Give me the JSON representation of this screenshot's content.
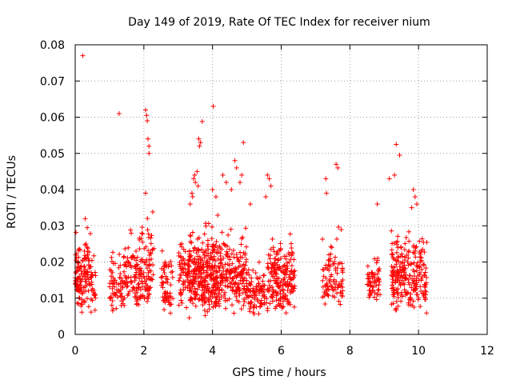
{
  "chart_data": {
    "type": "scatter",
    "title": "Day 149 of 2019, Rate Of TEC Index for receiver nium",
    "xlabel": "GPS time / hours",
    "ylabel": "ROTI / TECUs",
    "xlim": [
      0,
      12
    ],
    "ylim": [
      0,
      0.08
    ],
    "x_ticks": [
      0,
      2,
      4,
      6,
      8,
      10,
      12
    ],
    "y_ticks": [
      0,
      0.01,
      0.02,
      0.03,
      0.04,
      0.05,
      0.06,
      0.07,
      0.08
    ],
    "x_tick_labels": [
      "0",
      "2",
      "4",
      "6",
      "8",
      "10",
      "12"
    ],
    "y_tick_labels": [
      "0",
      "0.01",
      "0.02",
      "0.03",
      "0.04",
      "0.05",
      "0.06",
      "0.07",
      "0.08"
    ],
    "grid": true,
    "marker": "+",
    "color": "#ff0000",
    "clusters": [
      {
        "x_range": [
          0.0,
          0.2
        ],
        "y_range": [
          0.005,
          0.03
        ],
        "count": 70
      },
      {
        "x_range": [
          0.2,
          0.45
        ],
        "y_range": [
          0.006,
          0.034
        ],
        "count": 60
      },
      {
        "x_range": [
          0.45,
          0.6
        ],
        "y_range": [
          0.005,
          0.026
        ],
        "count": 25
      },
      {
        "x_range": [
          1.0,
          1.4
        ],
        "y_range": [
          0.005,
          0.026
        ],
        "count": 60
      },
      {
        "x_range": [
          1.4,
          1.75
        ],
        "y_range": [
          0.004,
          0.034
        ],
        "count": 60
      },
      {
        "x_range": [
          1.75,
          2.3
        ],
        "y_range": [
          0.005,
          0.037
        ],
        "count": 120
      },
      {
        "x_range": [
          2.5,
          2.85
        ],
        "y_range": [
          0.004,
          0.027
        ],
        "count": 60
      },
      {
        "x_range": [
          3.0,
          3.35
        ],
        "y_range": [
          0.007,
          0.031
        ],
        "count": 70
      },
      {
        "x_range": [
          3.3,
          4.3
        ],
        "y_range": [
          0.004,
          0.034
        ],
        "count": 350
      },
      {
        "x_range": [
          4.3,
          5.0
        ],
        "y_range": [
          0.005,
          0.033
        ],
        "count": 160
      },
      {
        "x_range": [
          5.0,
          5.6
        ],
        "y_range": [
          0.004,
          0.022
        ],
        "count": 90
      },
      {
        "x_range": [
          5.6,
          6.4
        ],
        "y_range": [
          0.004,
          0.032
        ],
        "count": 200
      },
      {
        "x_range": [
          7.2,
          7.5
        ],
        "y_range": [
          0.007,
          0.031
        ],
        "count": 45
      },
      {
        "x_range": [
          7.5,
          7.8
        ],
        "y_range": [
          0.005,
          0.031
        ],
        "count": 45
      },
      {
        "x_range": [
          8.5,
          8.9
        ],
        "y_range": [
          0.007,
          0.025
        ],
        "count": 60
      },
      {
        "x_range": [
          9.2,
          10.25
        ],
        "y_range": [
          0.004,
          0.034
        ],
        "count": 240
      }
    ],
    "outliers": [
      [
        0.22,
        0.077
      ],
      [
        1.28,
        0.061
      ],
      [
        2.05,
        0.062
      ],
      [
        2.08,
        0.0605
      ],
      [
        2.1,
        0.059
      ],
      [
        2.12,
        0.054
      ],
      [
        2.15,
        0.052
      ],
      [
        2.15,
        0.05
      ],
      [
        2.05,
        0.039
      ],
      [
        3.7,
        0.0588
      ],
      [
        3.6,
        0.054
      ],
      [
        3.65,
        0.053
      ],
      [
        3.62,
        0.052
      ],
      [
        3.55,
        0.045
      ],
      [
        3.48,
        0.044
      ],
      [
        3.45,
        0.043
      ],
      [
        3.5,
        0.042
      ],
      [
        3.58,
        0.041
      ],
      [
        3.4,
        0.039
      ],
      [
        3.42,
        0.038
      ],
      [
        3.35,
        0.036
      ],
      [
        4.02,
        0.063
      ],
      [
        4.0,
        0.04
      ],
      [
        4.1,
        0.038
      ],
      [
        4.3,
        0.044
      ],
      [
        4.4,
        0.042
      ],
      [
        4.65,
        0.048
      ],
      [
        4.7,
        0.046
      ],
      [
        4.55,
        0.04
      ],
      [
        4.9,
        0.053
      ],
      [
        4.85,
        0.044
      ],
      [
        4.8,
        0.042
      ],
      [
        5.1,
        0.036
      ],
      [
        5.6,
        0.044
      ],
      [
        5.65,
        0.043
      ],
      [
        5.55,
        0.038
      ],
      [
        5.7,
        0.041
      ],
      [
        7.3,
        0.043
      ],
      [
        7.32,
        0.039
      ],
      [
        7.6,
        0.047
      ],
      [
        7.65,
        0.046
      ],
      [
        8.8,
        0.036
      ],
      [
        9.15,
        0.043
      ],
      [
        9.3,
        0.044
      ],
      [
        9.35,
        0.0525
      ],
      [
        9.45,
        0.0495
      ],
      [
        9.85,
        0.04
      ],
      [
        9.9,
        0.038
      ],
      [
        9.8,
        0.035
      ],
      [
        9.95,
        0.036
      ]
    ]
  }
}
